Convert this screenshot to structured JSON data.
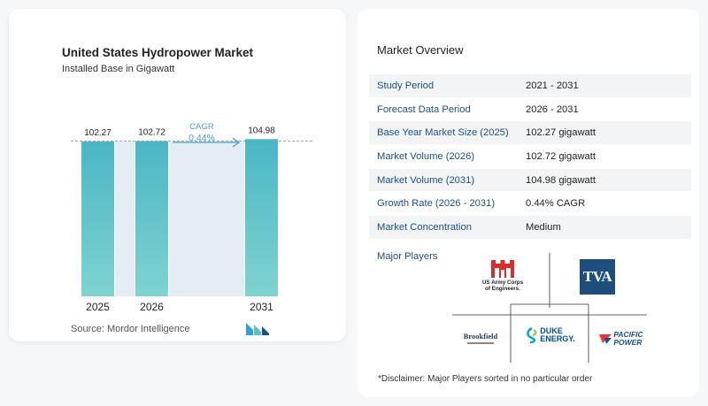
{
  "chart": {
    "title": "United States Hydropower Market",
    "subtitle": "Installed Base in Gigawatt",
    "source": "Source:  Mordor Intelligence",
    "cagr_label": "CAGR",
    "cagr_value": "0.44%"
  },
  "chart_data": {
    "type": "bar",
    "title": "United States Hydropower Market",
    "subtitle": "Installed Base in Gigawatt",
    "categories": [
      "2025",
      "2026",
      "2031"
    ],
    "values": [
      102.27,
      102.72,
      104.98
    ],
    "value_labels": [
      "102.27",
      "102.72",
      "104.98"
    ],
    "annotation": {
      "label": "CAGR",
      "value": "0.44%"
    },
    "bar_color": "#5cc1c6",
    "accent_color": "#e4edf4"
  },
  "overview": {
    "title": "Market Overview",
    "rows": [
      {
        "label": "Study Period",
        "value": "2021 - 2031"
      },
      {
        "label": "Forecast Data Period",
        "value": "2026 - 2031"
      },
      {
        "label": "Base Year Market Size (2025)",
        "value": "102.27 gigawatt"
      },
      {
        "label": "Market Volume (2026)",
        "value": "102.72 gigawatt"
      },
      {
        "label": "Market Volume (2031)",
        "value": "104.98 gigawatt"
      },
      {
        "label": "Growth Rate (2026 - 2031)",
        "value": "0.44% CAGR"
      },
      {
        "label": "Market Concentration",
        "value": "Medium"
      }
    ],
    "players_label": "Major Players",
    "disclaimer": "*Disclaimer: Major Players sorted in no particular order"
  },
  "players": {
    "usace": {
      "line1": "US Army Corps",
      "line2": "of Engineers."
    },
    "tva": "TVA",
    "brookfield": "Brookfield",
    "duke": {
      "line1": "DUKE",
      "line2": "ENERGY."
    },
    "pacific": {
      "line1": "PACIFIC",
      "line2": "POWER"
    }
  }
}
